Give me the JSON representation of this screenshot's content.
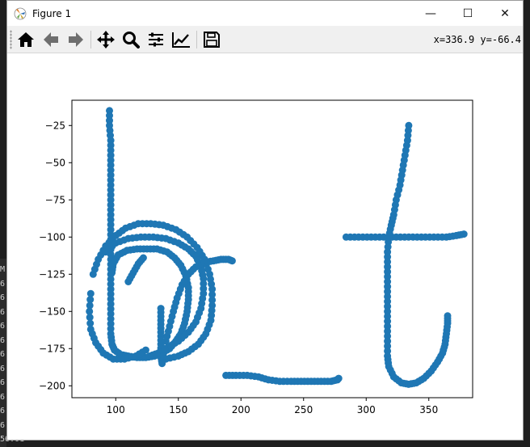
{
  "window": {
    "title": "Figure 1",
    "controls": {
      "minimize": "—",
      "maximize": "☐",
      "close": "✕"
    }
  },
  "toolbar": {
    "items": [
      {
        "name": "home-icon",
        "label": "Home"
      },
      {
        "name": "back-icon",
        "label": "Back"
      },
      {
        "name": "forward-icon",
        "label": "Forward"
      },
      {
        "name": "pan-icon",
        "label": "Pan"
      },
      {
        "name": "zoom-icon",
        "label": "Zoom"
      },
      {
        "name": "subplots-icon",
        "label": "Subplots"
      },
      {
        "name": "edit-axis-icon",
        "label": "Customize"
      },
      {
        "name": "save-icon",
        "label": "Save"
      }
    ],
    "coordinate_readout": "x=336.9 y=-66.4"
  },
  "edge_text": [
    "M",
    "6",
    "6",
    "6",
    "6",
    "6",
    "6",
    "6",
    "6",
    "6",
    "6",
    "6",
    "56.01"
  ],
  "colors": {
    "marker": "#1f77b4",
    "accent": "#000000"
  },
  "chart_data": {
    "type": "scatter",
    "xlim": [
      65,
      385
    ],
    "ylim": [
      -208,
      -8
    ],
    "xticks": [
      100,
      150,
      200,
      250,
      300,
      350
    ],
    "yticks": [
      -25,
      -50,
      -75,
      -100,
      -125,
      -150,
      -175,
      -200
    ],
    "grid": false,
    "series": [
      {
        "points": [
          [
            95,
            -15
          ],
          [
            95,
            -25
          ],
          [
            96,
            -35
          ],
          [
            96,
            -45
          ],
          [
            96,
            -55
          ],
          [
            96,
            -65
          ],
          [
            96,
            -75
          ],
          [
            96,
            -85
          ],
          [
            96,
            -95
          ],
          [
            96,
            -105
          ],
          [
            96,
            -115
          ],
          [
            96,
            -125
          ],
          [
            96,
            -135
          ],
          [
            96,
            -145
          ],
          [
            96,
            -155
          ],
          [
            96,
            -165
          ],
          [
            97,
            -172
          ],
          [
            99,
            -176
          ],
          [
            104,
            -179
          ],
          [
            110,
            -180
          ],
          [
            117,
            -181
          ],
          [
            124,
            -181
          ],
          [
            131,
            -180
          ],
          [
            137,
            -178
          ],
          [
            143,
            -175
          ],
          [
            148,
            -170
          ],
          [
            152,
            -165
          ],
          [
            155,
            -158
          ],
          [
            157,
            -150
          ],
          [
            158,
            -142
          ],
          [
            158,
            -134
          ],
          [
            156,
            -126
          ],
          [
            152,
            -119
          ],
          [
            147,
            -114
          ],
          [
            141,
            -110
          ],
          [
            133,
            -108
          ],
          [
            125,
            -108
          ],
          [
            117,
            -108
          ],
          [
            109,
            -109
          ],
          [
            102,
            -112
          ],
          [
            98,
            -118
          ],
          [
            97,
            -124
          ],
          [
            80,
            -138
          ],
          [
            79,
            -150
          ],
          [
            80,
            -162
          ],
          [
            84,
            -171
          ],
          [
            90,
            -178
          ],
          [
            98,
            -182
          ],
          [
            107,
            -182
          ],
          [
            116,
            -180
          ],
          [
            124,
            -176
          ],
          [
            82,
            -125
          ],
          [
            86,
            -115
          ],
          [
            92,
            -106
          ],
          [
            100,
            -99
          ],
          [
            108,
            -94
          ],
          [
            118,
            -91
          ],
          [
            128,
            -91
          ],
          [
            138,
            -92
          ],
          [
            148,
            -95
          ],
          [
            157,
            -100
          ],
          [
            165,
            -107
          ],
          [
            171,
            -115
          ],
          [
            175,
            -125
          ],
          [
            177,
            -135
          ],
          [
            177,
            -146
          ],
          [
            176,
            -156
          ],
          [
            172,
            -165
          ],
          [
            166,
            -172
          ],
          [
            158,
            -177
          ],
          [
            150,
            -180
          ],
          [
            140,
            -182
          ],
          [
            92,
            -110
          ],
          [
            100,
            -104
          ],
          [
            110,
            -101
          ],
          [
            120,
            -100
          ],
          [
            130,
            -100
          ],
          [
            140,
            -101
          ],
          [
            150,
            -104
          ],
          [
            158,
            -108
          ],
          [
            164,
            -113
          ],
          [
            168,
            -120
          ],
          [
            170,
            -128
          ],
          [
            170,
            -138
          ],
          [
            168,
            -148
          ],
          [
            164,
            -157
          ],
          [
            158,
            -164
          ],
          [
            150,
            -170
          ],
          [
            142,
            -174
          ],
          [
            134,
            -178
          ],
          [
            127,
            -180
          ],
          [
            136,
            -148
          ],
          [
            136,
            -156
          ],
          [
            136,
            -164
          ],
          [
            136,
            -172
          ],
          [
            136,
            -180
          ],
          [
            137,
            -185
          ],
          [
            140,
            -170
          ],
          [
            143,
            -160
          ],
          [
            146,
            -150
          ],
          [
            149,
            -141
          ],
          [
            153,
            -132
          ],
          [
            158,
            -125
          ],
          [
            164,
            -120
          ],
          [
            171,
            -117
          ],
          [
            178,
            -116
          ],
          [
            184,
            -115
          ],
          [
            190,
            -115
          ],
          [
            193,
            -116
          ],
          [
            110,
            -130
          ],
          [
            114,
            -124
          ],
          [
            118,
            -118
          ],
          [
            122,
            -114
          ],
          [
            188,
            -193
          ],
          [
            196,
            -193
          ],
          [
            205,
            -193
          ],
          [
            214,
            -194
          ],
          [
            222,
            -196
          ],
          [
            231,
            -197
          ],
          [
            240,
            -197
          ],
          [
            248,
            -197
          ],
          [
            256,
            -197
          ],
          [
            264,
            -197
          ],
          [
            272,
            -197
          ],
          [
            277,
            -196
          ],
          [
            278,
            -195
          ],
          [
            284,
            -100
          ],
          [
            294,
            -100
          ],
          [
            304,
            -100
          ],
          [
            314,
            -100
          ],
          [
            324,
            -100
          ],
          [
            334,
            -100
          ],
          [
            344,
            -100
          ],
          [
            354,
            -100
          ],
          [
            364,
            -100
          ],
          [
            372,
            -99
          ],
          [
            378,
            -98
          ],
          [
            334,
            -25
          ],
          [
            333,
            -35
          ],
          [
            331,
            -45
          ],
          [
            329,
            -55
          ],
          [
            327,
            -65
          ],
          [
            324,
            -75
          ],
          [
            322,
            -85
          ],
          [
            320,
            -92
          ],
          [
            318,
            -100
          ],
          [
            317,
            -110
          ],
          [
            317,
            -120
          ],
          [
            317,
            -130
          ],
          [
            317,
            -140
          ],
          [
            317,
            -150
          ],
          [
            317,
            -160
          ],
          [
            317,
            -170
          ],
          [
            317,
            -180
          ],
          [
            318,
            -187
          ],
          [
            322,
            -194
          ],
          [
            328,
            -198
          ],
          [
            334,
            -199
          ],
          [
            340,
            -198
          ],
          [
            346,
            -195
          ],
          [
            352,
            -190
          ],
          [
            357,
            -184
          ],
          [
            361,
            -178
          ],
          [
            363,
            -172
          ],
          [
            364,
            -165
          ],
          [
            365,
            -158
          ],
          [
            365,
            -153
          ]
        ]
      }
    ]
  }
}
